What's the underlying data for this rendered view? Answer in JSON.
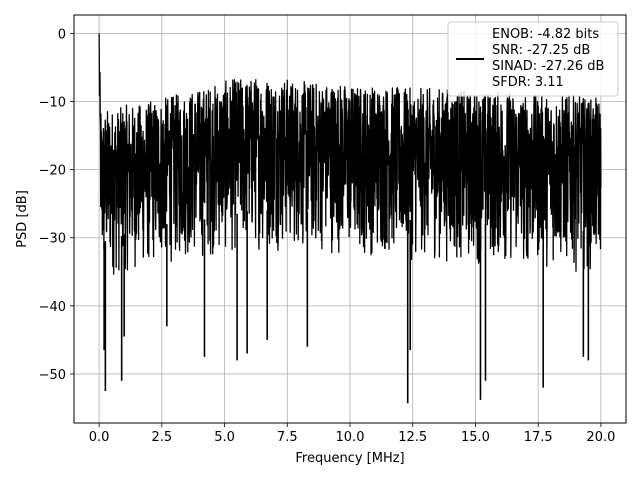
{
  "chart_data": {
    "type": "line",
    "title": "",
    "xlabel": "Frequency [MHz]",
    "ylabel": "PSD [dB]",
    "xlim": [
      -1.0,
      21.0
    ],
    "ylim": [
      -57.2,
      2.7
    ],
    "xticks": [
      0.0,
      2.5,
      5.0,
      7.5,
      10.0,
      12.5,
      15.0,
      17.5,
      20.0
    ],
    "xtick_labels": [
      "0.0",
      "2.5",
      "5.0",
      "7.5",
      "10.0",
      "12.5",
      "15.0",
      "17.5",
      "20.0"
    ],
    "yticks": [
      0,
      -10,
      -20,
      -30,
      -40,
      -50
    ],
    "ytick_labels": [
      "0",
      "−10",
      "−20",
      "−30",
      "−40",
      "−50"
    ],
    "grid": true,
    "legend_position": "top-right",
    "line_color": "#000000",
    "legend_lines": [
      "ENOB: -4.82 bits",
      "SNR: -27.25 dB",
      "SINAD: -27.26 dB",
      "SFDR: 3.11"
    ],
    "series": [
      {
        "x": [
          0.0,
          0.02,
          0.05,
          0.1,
          0.2,
          0.3,
          0.5,
          0.8,
          1.0,
          1.5,
          2.0,
          2.5,
          3.0,
          3.5,
          4.0,
          4.5,
          5.0,
          5.5,
          6.0,
          6.5,
          7.0,
          7.5,
          8.0,
          8.5,
          9.0,
          9.5,
          10.0,
          10.5,
          11.0,
          11.5,
          12.0,
          12.5,
          13.0,
          13.5,
          14.0,
          14.5,
          15.0,
          15.5,
          16.0,
          16.5,
          17.0,
          17.5,
          18.0,
          18.5,
          19.0,
          19.5,
          20.0
        ],
        "upper": [
          0.0,
          -3.0,
          -8.0,
          -12.0,
          -11.5,
          -11.0,
          -11.0,
          -11.0,
          -10.5,
          -10.5,
          -10.0,
          -9.5,
          -9.0,
          -8.5,
          -8.0,
          -7.5,
          -7.0,
          -6.5,
          -6.5,
          -6.0,
          -6.5,
          -6.5,
          -7.0,
          -7.0,
          -7.0,
          -7.0,
          -7.5,
          -7.5,
          -7.5,
          -7.5,
          -8.0,
          -8.0,
          -8.0,
          -8.0,
          -8.0,
          -8.5,
          -8.5,
          -8.5,
          -8.5,
          -8.5,
          -9.0,
          -9.0,
          -9.0,
          -9.0,
          -9.0,
          -9.5,
          -9.5
        ],
        "lower": [
          -5.0,
          -15.0,
          -30.0,
          -38.0,
          -37.0,
          -36.0,
          -36.0,
          -36.0,
          -35.5,
          -35.0,
          -35.0,
          -34.0,
          -34.0,
          -33.5,
          -33.5,
          -33.0,
          -33.0,
          -32.5,
          -32.0,
          -32.0,
          -32.0,
          -32.0,
          -32.0,
          -32.5,
          -32.5,
          -32.5,
          -33.0,
          -33.0,
          -33.0,
          -33.0,
          -33.0,
          -33.5,
          -33.5,
          -33.5,
          -34.0,
          -34.0,
          -34.0,
          -34.0,
          -34.0,
          -34.5,
          -34.5,
          -34.5,
          -34.5,
          -34.5,
          -35.0,
          -35.0,
          -35.0
        ]
      }
    ],
    "deep_dips": [
      {
        "x": 0.2,
        "y": -46.5
      },
      {
        "x": 0.25,
        "y": -52.5
      },
      {
        "x": 0.9,
        "y": -51.0
      },
      {
        "x": 1.0,
        "y": -44.5
      },
      {
        "x": 2.7,
        "y": -43.0
      },
      {
        "x": 4.2,
        "y": -47.5
      },
      {
        "x": 5.5,
        "y": -48.0
      },
      {
        "x": 5.9,
        "y": -47.0
      },
      {
        "x": 6.7,
        "y": -45.0
      },
      {
        "x": 8.3,
        "y": -46.0
      },
      {
        "x": 12.3,
        "y": -54.3
      },
      {
        "x": 12.4,
        "y": -46.5
      },
      {
        "x": 15.2,
        "y": -53.8
      },
      {
        "x": 15.4,
        "y": -51.0
      },
      {
        "x": 17.7,
        "y": -52.0
      },
      {
        "x": 19.3,
        "y": -47.5
      },
      {
        "x": 19.5,
        "y": -48.0
      }
    ]
  }
}
